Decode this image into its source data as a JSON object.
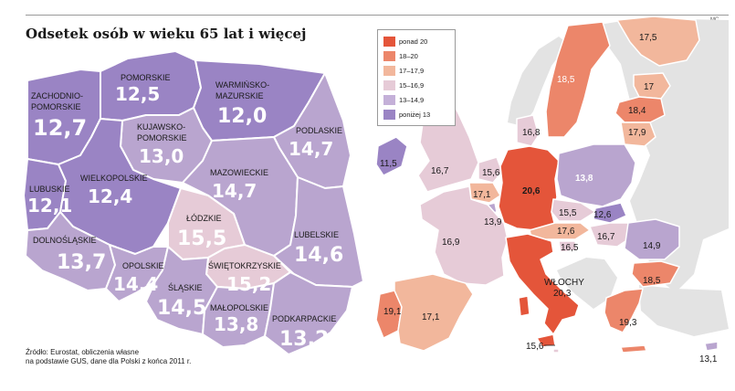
{
  "title": "Odsetek osób w wieku 65 lat i więcej",
  "signature": "MC",
  "source": {
    "line1": "Źródło: Eurostat, obliczenia własne",
    "line2": "na podstawie GUS, dane dla Polski z końca 2011 r."
  },
  "colors": {
    "ponad_20": "#e4553a",
    "c18_20": "#ec866a",
    "c17_179": "#f2b79c",
    "c159_169": "#e6cbd7",
    "c13_149": "#b9a5cf",
    "ponizej_13": "#9a84c4"
  },
  "legend": [
    {
      "label": "ponad 20",
      "color": "#e4553a"
    },
    {
      "label": "18–20",
      "color": "#ec866a"
    },
    {
      "label": "17–17,9",
      "color": "#f2b79c"
    },
    {
      "label": "15–16,9",
      "color": "#e6cbd7"
    },
    {
      "label": "13–14,9",
      "color": "#c4b0d8"
    },
    {
      "label": "poniżej 13",
      "color": "#9a84c4"
    }
  ],
  "poland": {
    "zachodniopomorskie": {
      "name1": "ZACHODNIO-",
      "name2": "POMORSKIE",
      "value": "12,7"
    },
    "pomorskie": {
      "name": "POMORSKIE",
      "value": "12,5"
    },
    "warminsko": {
      "name1": "WARMIŃSKO-",
      "name2": "MAZURSKIE",
      "value": "12,0"
    },
    "kujawsko": {
      "name1": "KUJAWSKO-",
      "name2": "POMORSKIE",
      "value": "13,0"
    },
    "podlaskie": {
      "name": "PODLASKIE",
      "value": "14,7"
    },
    "lubuskie": {
      "name": "LUBUSKIE",
      "value": "12,1"
    },
    "wielkopolskie": {
      "name": "WIELKOPOLSKIE",
      "value": "12,4"
    },
    "mazowieckie": {
      "name": "MAZOWIECKIE",
      "value": "14,7"
    },
    "lodzkie": {
      "name": "ŁÓDZKIE",
      "value": "15,5"
    },
    "lubelskie": {
      "name": "LUBELSKIE",
      "value": "14,6"
    },
    "dolnoslaskie": {
      "name": "DOLNOŚLĄSKIE",
      "value": "13,7"
    },
    "opolskie": {
      "name": "OPOLSKIE",
      "value": "14,4"
    },
    "swietokrzyskie": {
      "name": "ŚWIĘTOKRZYSKIE",
      "value": "15,2"
    },
    "slaskie": {
      "name": "ŚLĄSKIE",
      "value": "14,5"
    },
    "malopolskie": {
      "name": "MAŁOPOLSKIE",
      "value": "13,8"
    },
    "podkarpackie": {
      "name": "PODKARPACKIE",
      "value": "13,2"
    }
  },
  "europe": {
    "finland": "17,5",
    "sweden": "18,5",
    "estonia": "17",
    "latvia": "18,4",
    "lithuania": "17,9",
    "denmark": "16,8",
    "ireland": "11,5",
    "uk": "16,7",
    "netherlands": "15,6",
    "belgium": "17,1",
    "luxembourg": "13,9",
    "germany": "20,6",
    "poland": "13,8",
    "czech": "15,5",
    "slovakia": "12,6",
    "austria": "17,6",
    "hungary": "16,7",
    "slovenia": "16,5",
    "france": "16,9",
    "romania": "14,9",
    "bulgaria": "18,5",
    "italy_name": "WŁOCHY",
    "italy": "20,3",
    "portugal": "19,1",
    "spain": "17,1",
    "greece": "19,3",
    "malta": "15,6",
    "cyprus": "13,1"
  }
}
